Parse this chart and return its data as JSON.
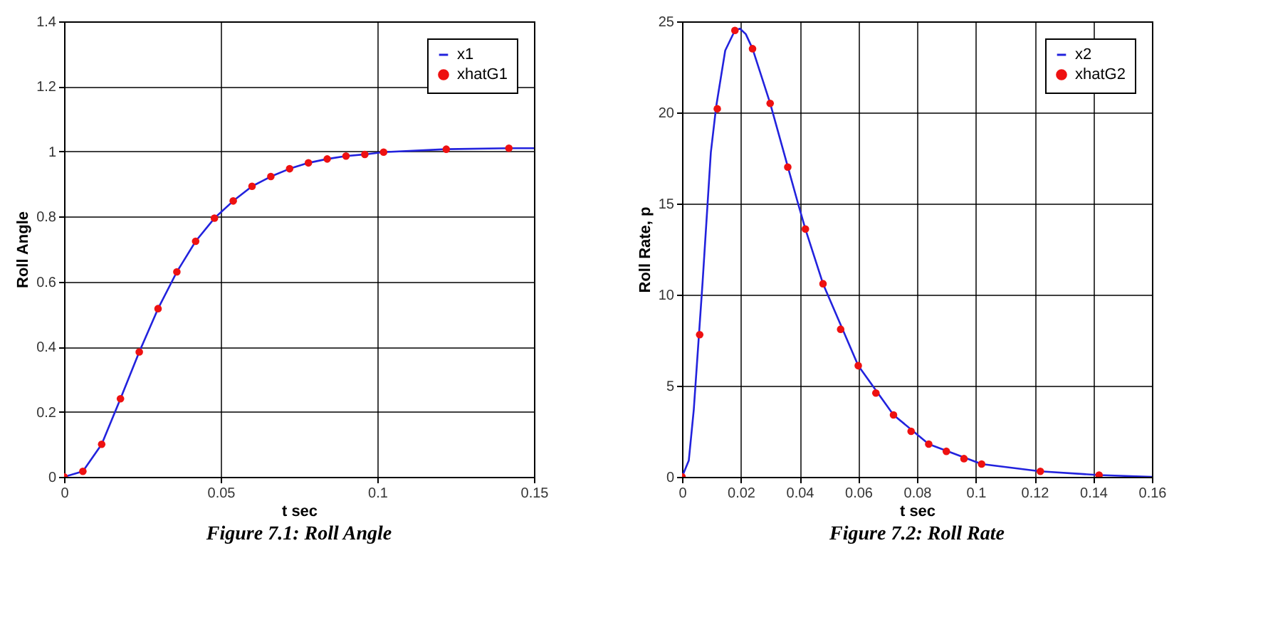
{
  "chart_data": [
    {
      "type": "line",
      "xlabel": "t sec",
      "ylabel": "Roll Angle",
      "xlim": [
        0,
        0.15
      ],
      "ylim": [
        0,
        1.4
      ],
      "xticks": [
        0,
        0.05,
        0.1,
        0.15
      ],
      "yticks": [
        0,
        0.2,
        0.4,
        0.6,
        0.8,
        1,
        1.2,
        1.4
      ],
      "grid": true,
      "legend": "top right",
      "annotations": [
        "Figure 7.1: Roll Angle"
      ],
      "series": [
        {
          "name": "x1",
          "color": "#2222dd",
          "marker": "none",
          "x": [
            0,
            0.006,
            0.012,
            0.018,
            0.024,
            0.03,
            0.036,
            0.042,
            0.048,
            0.054,
            0.06,
            0.066,
            0.072,
            0.078,
            0.084,
            0.09,
            0.096,
            0.102,
            0.122,
            0.142,
            0.15
          ],
          "values": [
            0,
            0.017,
            0.1,
            0.24,
            0.384,
            0.517,
            0.63,
            0.724,
            0.795,
            0.848,
            0.893,
            0.923,
            0.947,
            0.965,
            0.977,
            0.986,
            0.991,
            0.998,
            1.007,
            1.01,
            1.01
          ]
        },
        {
          "name": "xhatG1",
          "type": "scatter",
          "color": "#ee1111",
          "marker": "circle",
          "x": [
            0,
            0.006,
            0.012,
            0.018,
            0.024,
            0.03,
            0.036,
            0.042,
            0.048,
            0.054,
            0.06,
            0.066,
            0.072,
            0.078,
            0.084,
            0.09,
            0.096,
            0.102,
            0.122,
            0.142
          ],
          "values": [
            0,
            0.017,
            0.1,
            0.24,
            0.384,
            0.517,
            0.63,
            0.724,
            0.795,
            0.848,
            0.893,
            0.923,
            0.947,
            0.965,
            0.977,
            0.986,
            0.991,
            0.998,
            1.007,
            1.01
          ]
        }
      ]
    },
    {
      "type": "line",
      "xlabel": "t sec",
      "ylabel": "Roll Rate, p",
      "xlim": [
        0,
        0.16
      ],
      "ylim": [
        0,
        25
      ],
      "xticks": [
        0,
        0.02,
        0.04,
        0.06,
        0.08,
        0.1,
        0.12,
        0.14,
        0.16
      ],
      "yticks": [
        0,
        5,
        10,
        15,
        20,
        25
      ],
      "grid": true,
      "legend": "top right",
      "annotations": [
        "Figure 7.2: Roll Rate"
      ],
      "series": [
        {
          "name": "x2",
          "color": "#2222dd",
          "marker": "none",
          "x": [
            0,
            0.0023,
            0.004,
            0.007,
            0.0098,
            0.0116,
            0.0147,
            0.018,
            0.0197,
            0.0217,
            0.024,
            0.03,
            0.0395,
            0.042,
            0.048,
            0.06,
            0.072,
            0.084,
            0.102,
            0.122,
            0.142,
            0.16
          ],
          "values": [
            0,
            0.9,
            3.7,
            10.7,
            17.8,
            20.3,
            23.4,
            24.5,
            24.6,
            24.3,
            23.5,
            20.5,
            15,
            13.6,
            10.6,
            6.1,
            3.4,
            1.8,
            0.7,
            0.3,
            0.1,
            0
          ]
        },
        {
          "name": "xhatG2",
          "type": "scatter",
          "color": "#ee1111",
          "marker": "circle",
          "x": [
            0,
            0.006,
            0.012,
            0.018,
            0.024,
            0.03,
            0.036,
            0.042,
            0.048,
            0.054,
            0.06,
            0.066,
            0.072,
            0.078,
            0.084,
            0.09,
            0.096,
            0.102,
            0.122,
            0.142
          ],
          "values": [
            0,
            7.8,
            20.2,
            24.5,
            23.5,
            20.5,
            17,
            13.6,
            10.6,
            8.1,
            6.1,
            4.6,
            3.4,
            2.5,
            1.8,
            1.4,
            1,
            0.7,
            0.3,
            0.1
          ]
        }
      ]
    }
  ]
}
